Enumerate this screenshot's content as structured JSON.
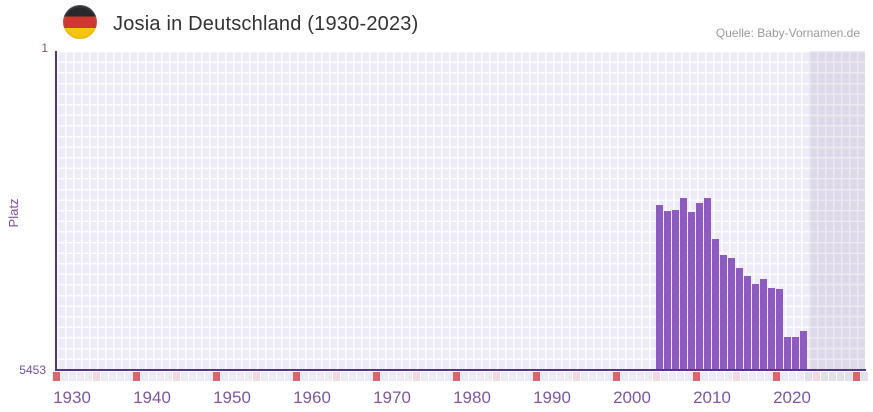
{
  "header": {
    "title": "Josia in Deutschland (1930-2023)",
    "source": "Quelle: Baby-Vornamen.de",
    "flag_icon": "german-flag-round"
  },
  "y_axis": {
    "label": "Platz",
    "top_tick": "1",
    "bottom_tick": "5453"
  },
  "chart_data": {
    "type": "bar",
    "title": "Josia in Deutschland (1930-2023)",
    "xlabel": "",
    "ylabel": "Platz",
    "y_axis": {
      "min": 1,
      "max": 5453,
      "inverted": true,
      "top_label": "1",
      "bottom_label": "5453"
    },
    "x_ticks": [
      "1930",
      "1940",
      "1950",
      "1960",
      "1970",
      "1980",
      "1990",
      "2000",
      "2010",
      "2020"
    ],
    "x_range": [
      1928,
      2029
    ],
    "grid": true,
    "legend": "none",
    "years": [
      2004,
      2005,
      2006,
      2007,
      2008,
      2009,
      2010,
      2011,
      2012,
      2013,
      2014,
      2015,
      2016,
      2017,
      2018,
      2019,
      2020,
      2021,
      2022
    ],
    "values": [
      2640,
      2745,
      2730,
      2525,
      2755,
      2600,
      2520,
      3230,
      3490,
      3545,
      3720,
      3860,
      4000,
      3910,
      4065,
      4080,
      4900,
      4905,
      4795
    ],
    "no_data_region": {
      "from_year": 2023,
      "note": "shaded band, no ranking data"
    },
    "colors": {
      "bar": "#8d5bc3",
      "axis": "#53338c",
      "plot_bg": "#eeebf8",
      "tick_label": "#7e57a5",
      "title_text": "#333333",
      "source_text": "#9b9b9b",
      "strip_base": "#edeaf6",
      "strip_base_dark": "#e3e0ec",
      "strip_red": "#e0646e",
      "strip_pink": "#f3d8e3"
    },
    "strip": {
      "cell_count": 102,
      "red_interval": 10,
      "pink_offset": 5,
      "dark_from_index": 94
    }
  }
}
